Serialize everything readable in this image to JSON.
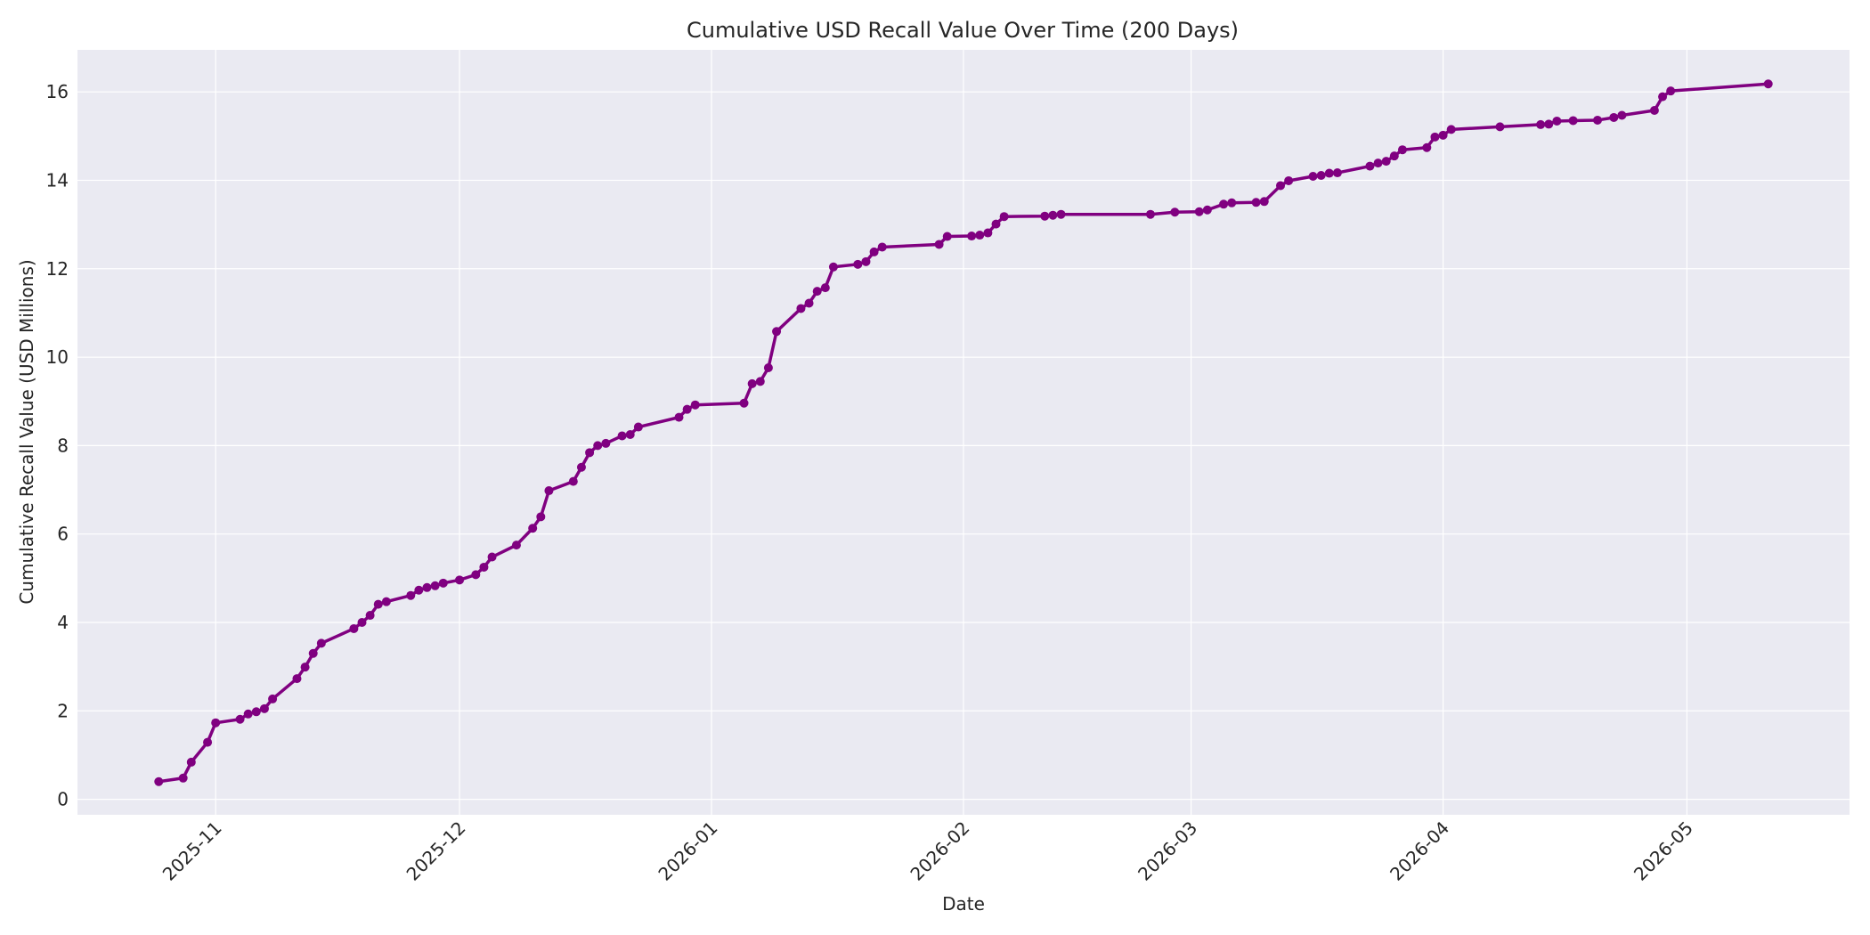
{
  "chart_data": {
    "type": "line",
    "title": "Cumulative USD Recall Value Over Time (200 Days)",
    "xlabel": "Date",
    "ylabel": "Cumulative Recall Value (USD Millions)",
    "xlim": [
      "2025-10-15",
      "2026-05-21"
    ],
    "ylim": [
      -0.35,
      16.95
    ],
    "x_ticks": [
      {
        "date": "2025-11-01",
        "label": "2025-11"
      },
      {
        "date": "2025-12-01",
        "label": "2025-12"
      },
      {
        "date": "2026-01-01",
        "label": "2026-01"
      },
      {
        "date": "2026-02-01",
        "label": "2026-02"
      },
      {
        "date": "2026-03-01",
        "label": "2026-03"
      },
      {
        "date": "2026-04-01",
        "label": "2026-04"
      },
      {
        "date": "2026-05-01",
        "label": "2026-05"
      }
    ],
    "y_ticks": [
      0,
      2,
      4,
      6,
      8,
      10,
      12,
      14,
      16
    ],
    "grid": true,
    "colors": {
      "line": "#800080",
      "plot_background": "#eaeaf2",
      "grid": "#ffffff",
      "text": "#262626"
    },
    "series": [
      {
        "points": [
          [
            "2025-10-25",
            0.4
          ],
          [
            "2025-10-28",
            0.48
          ],
          [
            "2025-10-29",
            0.84
          ],
          [
            "2025-10-31",
            1.29
          ],
          [
            "2025-11-01",
            1.73
          ],
          [
            "2025-11-04",
            1.81
          ],
          [
            "2025-11-05",
            1.93
          ],
          [
            "2025-11-06",
            1.98
          ],
          [
            "2025-11-07",
            2.05
          ],
          [
            "2025-11-08",
            2.27
          ],
          [
            "2025-11-11",
            2.73
          ],
          [
            "2025-11-12",
            2.99
          ],
          [
            "2025-11-13",
            3.3
          ],
          [
            "2025-11-14",
            3.53
          ],
          [
            "2025-11-18",
            3.86
          ],
          [
            "2025-11-19",
            4.0
          ],
          [
            "2025-11-20",
            4.16
          ],
          [
            "2025-11-21",
            4.41
          ],
          [
            "2025-11-22",
            4.47
          ],
          [
            "2025-11-25",
            4.61
          ],
          [
            "2025-11-26",
            4.73
          ],
          [
            "2025-11-27",
            4.79
          ],
          [
            "2025-11-28",
            4.83
          ],
          [
            "2025-11-29",
            4.89
          ],
          [
            "2025-12-01",
            4.96
          ],
          [
            "2025-12-03",
            5.08
          ],
          [
            "2025-12-04",
            5.25
          ],
          [
            "2025-12-05",
            5.48
          ],
          [
            "2025-12-08",
            5.75
          ],
          [
            "2025-12-10",
            6.13
          ],
          [
            "2025-12-11",
            6.39
          ],
          [
            "2025-12-12",
            6.98
          ],
          [
            "2025-12-15",
            7.19
          ],
          [
            "2025-12-16",
            7.51
          ],
          [
            "2025-12-17",
            7.84
          ],
          [
            "2025-12-18",
            8.0
          ],
          [
            "2025-12-19",
            8.05
          ],
          [
            "2025-12-21",
            8.22
          ],
          [
            "2025-12-22",
            8.25
          ],
          [
            "2025-12-23",
            8.42
          ],
          [
            "2025-12-28",
            8.64
          ],
          [
            "2025-12-29",
            8.82
          ],
          [
            "2025-12-30",
            8.92
          ],
          [
            "2026-01-05",
            8.96
          ],
          [
            "2026-01-06",
            9.4
          ],
          [
            "2026-01-07",
            9.45
          ],
          [
            "2026-01-08",
            9.76
          ],
          [
            "2026-01-09",
            10.58
          ],
          [
            "2026-01-12",
            11.1
          ],
          [
            "2026-01-13",
            11.22
          ],
          [
            "2026-01-14",
            11.49
          ],
          [
            "2026-01-15",
            11.57
          ],
          [
            "2026-01-16",
            12.04
          ],
          [
            "2026-01-19",
            12.1
          ],
          [
            "2026-01-20",
            12.16
          ],
          [
            "2026-01-21",
            12.38
          ],
          [
            "2026-01-22",
            12.49
          ],
          [
            "2026-01-29",
            12.55
          ],
          [
            "2026-01-30",
            12.73
          ],
          [
            "2026-02-02",
            12.74
          ],
          [
            "2026-02-03",
            12.76
          ],
          [
            "2026-02-04",
            12.81
          ],
          [
            "2026-02-05",
            13.01
          ],
          [
            "2026-02-06",
            13.18
          ],
          [
            "2026-02-11",
            13.19
          ],
          [
            "2026-02-12",
            13.21
          ],
          [
            "2026-02-13",
            13.23
          ],
          [
            "2026-02-24",
            13.23
          ],
          [
            "2026-02-27",
            13.28
          ],
          [
            "2026-03-02",
            13.29
          ],
          [
            "2026-03-03",
            13.33
          ],
          [
            "2026-03-05",
            13.46
          ],
          [
            "2026-03-06",
            13.49
          ],
          [
            "2026-03-09",
            13.5
          ],
          [
            "2026-03-10",
            13.52
          ],
          [
            "2026-03-12",
            13.88
          ],
          [
            "2026-03-13",
            13.99
          ],
          [
            "2026-03-16",
            14.09
          ],
          [
            "2026-03-17",
            14.11
          ],
          [
            "2026-03-18",
            14.16
          ],
          [
            "2026-03-19",
            14.17
          ],
          [
            "2026-03-23",
            14.32
          ],
          [
            "2026-03-24",
            14.39
          ],
          [
            "2026-03-25",
            14.43
          ],
          [
            "2026-03-26",
            14.55
          ],
          [
            "2026-03-27",
            14.69
          ],
          [
            "2026-03-30",
            14.74
          ],
          [
            "2026-03-31",
            14.98
          ],
          [
            "2026-04-01",
            15.02
          ],
          [
            "2026-04-02",
            15.15
          ],
          [
            "2026-04-08",
            15.21
          ],
          [
            "2026-04-13",
            15.26
          ],
          [
            "2026-04-14",
            15.27
          ],
          [
            "2026-04-15",
            15.34
          ],
          [
            "2026-04-17",
            15.35
          ],
          [
            "2026-04-20",
            15.36
          ],
          [
            "2026-04-22",
            15.42
          ],
          [
            "2026-04-23",
            15.47
          ],
          [
            "2026-04-27",
            15.58
          ],
          [
            "2026-04-28",
            15.89
          ],
          [
            "2026-04-29",
            16.02
          ],
          [
            "2026-05-11",
            16.18
          ]
        ]
      }
    ]
  }
}
